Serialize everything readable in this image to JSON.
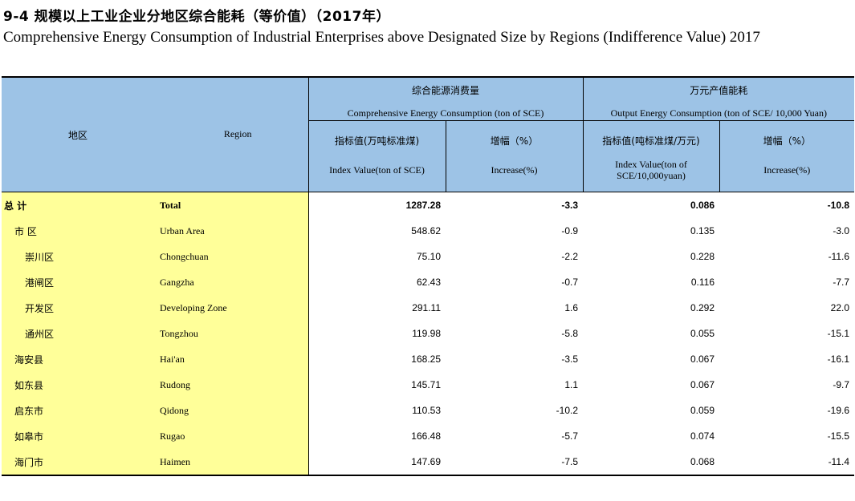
{
  "title_cn": "9-4 规模以上工业企业分地区综合能耗（等价值）（2017年）",
  "title_en": "Comprehensive Energy Consumption of Industrial Enterprises above Designated Size by Regions (Indifference Value) 2017",
  "header": {
    "region_cn": "地区",
    "region_en": "Region",
    "group1_cn": "综合能源消费量",
    "group1_en": "Comprehensive Energy Consumption (ton of SCE)",
    "group2_cn": "万元产值能耗",
    "group2_en": "Output Energy Consumption (ton of SCE/ 10,000 Yuan)",
    "col1_cn": "指标值(万吨标准煤)",
    "col1_en": "Index Value(ton of SCE)",
    "col2_cn": "增幅（%）",
    "col2_en": "Increase(%)",
    "col3_cn": "指标值(吨标准煤/万元)",
    "col3_en_line1": "Index Value(ton of",
    "col3_en_line2": "SCE/10,000yuan)",
    "col4_cn": "增幅（%）",
    "col4_en": "Increase(%)"
  },
  "rows": [
    {
      "cn": "总  计",
      "en": "Total",
      "v1": "1287.28",
      "v2": "-3.3",
      "v3": "0.086",
      "v4": "-10.8"
    },
    {
      "cn": "市    区",
      "en": "Urban Area",
      "v1": "548.62",
      "v2": "-0.9",
      "v3": "0.135",
      "v4": "-3.0"
    },
    {
      "cn": "崇川区",
      "en": "Chongchuan",
      "v1": "75.10",
      "v2": "-2.2",
      "v3": "0.228",
      "v4": "-11.6"
    },
    {
      "cn": "港闸区",
      "en": "Gangzha",
      "v1": "62.43",
      "v2": "-0.7",
      "v3": "0.116",
      "v4": "-7.7"
    },
    {
      "cn": "开发区",
      "en": "Developing Zone",
      "v1": "291.11",
      "v2": "1.6",
      "v3": "0.292",
      "v4": "22.0"
    },
    {
      "cn": "通州区",
      "en": "Tongzhou",
      "v1": "119.98",
      "v2": "-5.8",
      "v3": "0.055",
      "v4": "-15.1"
    },
    {
      "cn": "海安县",
      "en": "Hai'an",
      "v1": "168.25",
      "v2": "-3.5",
      "v3": "0.067",
      "v4": "-16.1"
    },
    {
      "cn": "如东县",
      "en": "Rudong",
      "v1": "145.71",
      "v2": "1.1",
      "v3": "0.067",
      "v4": "-9.7"
    },
    {
      "cn": "启东市",
      "en": "Qidong",
      "v1": "110.53",
      "v2": "-10.2",
      "v3": "0.059",
      "v4": "-19.6"
    },
    {
      "cn": "如皋市",
      "en": "Rugao",
      "v1": "166.48",
      "v2": "-5.7",
      "v3": "0.074",
      "v4": "-15.5"
    },
    {
      "cn": "海门市",
      "en": "Haimen",
      "v1": "147.69",
      "v2": "-7.5",
      "v3": "0.068",
      "v4": "-11.4"
    }
  ]
}
